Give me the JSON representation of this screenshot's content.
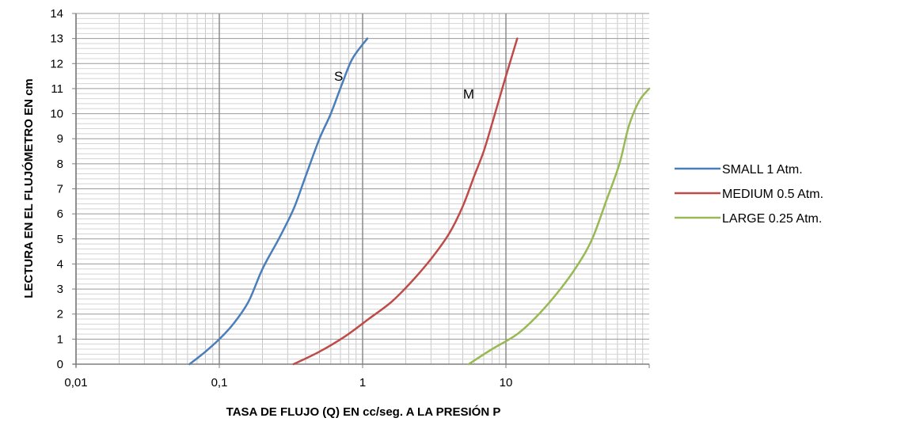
{
  "chart_data": {
    "type": "line",
    "xlabel": "TASA DE FLUJO (Q) EN cc/seg. A LA PRESIÓN P",
    "ylabel": "LECTURA EN EL FLUJÓMETRO EN cm",
    "x_scale": "log",
    "xlim": [
      0.01,
      100
    ],
    "ylim": [
      0,
      14
    ],
    "x_ticks": [
      0.01,
      0.1,
      1,
      10
    ],
    "x_tick_labels": [
      "0,01",
      "0,1",
      "1",
      "10"
    ],
    "y_ticks": [
      0,
      1,
      2,
      3,
      4,
      5,
      6,
      7,
      8,
      9,
      10,
      11,
      12,
      13,
      14
    ],
    "y_tick_labels": [
      "0",
      "1",
      "2",
      "3",
      "4",
      "5",
      "6",
      "7",
      "8",
      "9",
      "10",
      "11",
      "12",
      "13",
      "14"
    ],
    "grid": true,
    "legend_position": "right",
    "annotations": [
      {
        "text": "S",
        "x": 0.68,
        "y": 11.5
      },
      {
        "text": "M",
        "x": 5.5,
        "y": 10.8
      }
    ],
    "series": [
      {
        "name": "SMALL 1 Atm.",
        "color": "#4a7ebb",
        "points": [
          [
            0.062,
            0
          ],
          [
            0.08,
            0.5
          ],
          [
            0.1,
            1
          ],
          [
            0.125,
            1.6
          ],
          [
            0.16,
            2.5
          ],
          [
            0.2,
            3.8
          ],
          [
            0.26,
            5
          ],
          [
            0.33,
            6.2
          ],
          [
            0.4,
            7.5
          ],
          [
            0.5,
            9
          ],
          [
            0.6,
            10
          ],
          [
            0.72,
            11.2
          ],
          [
            0.85,
            12.2
          ],
          [
            1.08,
            13
          ]
        ]
      },
      {
        "name": "MEDIUM 0.5 Atm.",
        "color": "#be4b48",
        "points": [
          [
            0.33,
            0
          ],
          [
            0.5,
            0.5
          ],
          [
            0.75,
            1.1
          ],
          [
            1.1,
            1.8
          ],
          [
            1.6,
            2.5
          ],
          [
            2.2,
            3.3
          ],
          [
            3,
            4.2
          ],
          [
            4,
            5.2
          ],
          [
            5,
            6.3
          ],
          [
            6,
            7.5
          ],
          [
            7,
            8.5
          ],
          [
            8,
            9.6
          ],
          [
            9,
            10.6
          ],
          [
            10,
            11.5
          ],
          [
            12,
            13
          ]
        ]
      },
      {
        "name": "LARGE 0.25 Atm.",
        "color": "#98b954",
        "points": [
          [
            5.5,
            0
          ],
          [
            8,
            0.6
          ],
          [
            12,
            1.2
          ],
          [
            17,
            2
          ],
          [
            24,
            3
          ],
          [
            32,
            4
          ],
          [
            40,
            5
          ],
          [
            50,
            6.5
          ],
          [
            62,
            8
          ],
          [
            72,
            9.5
          ],
          [
            85,
            10.5
          ],
          [
            100,
            11
          ]
        ]
      }
    ]
  }
}
